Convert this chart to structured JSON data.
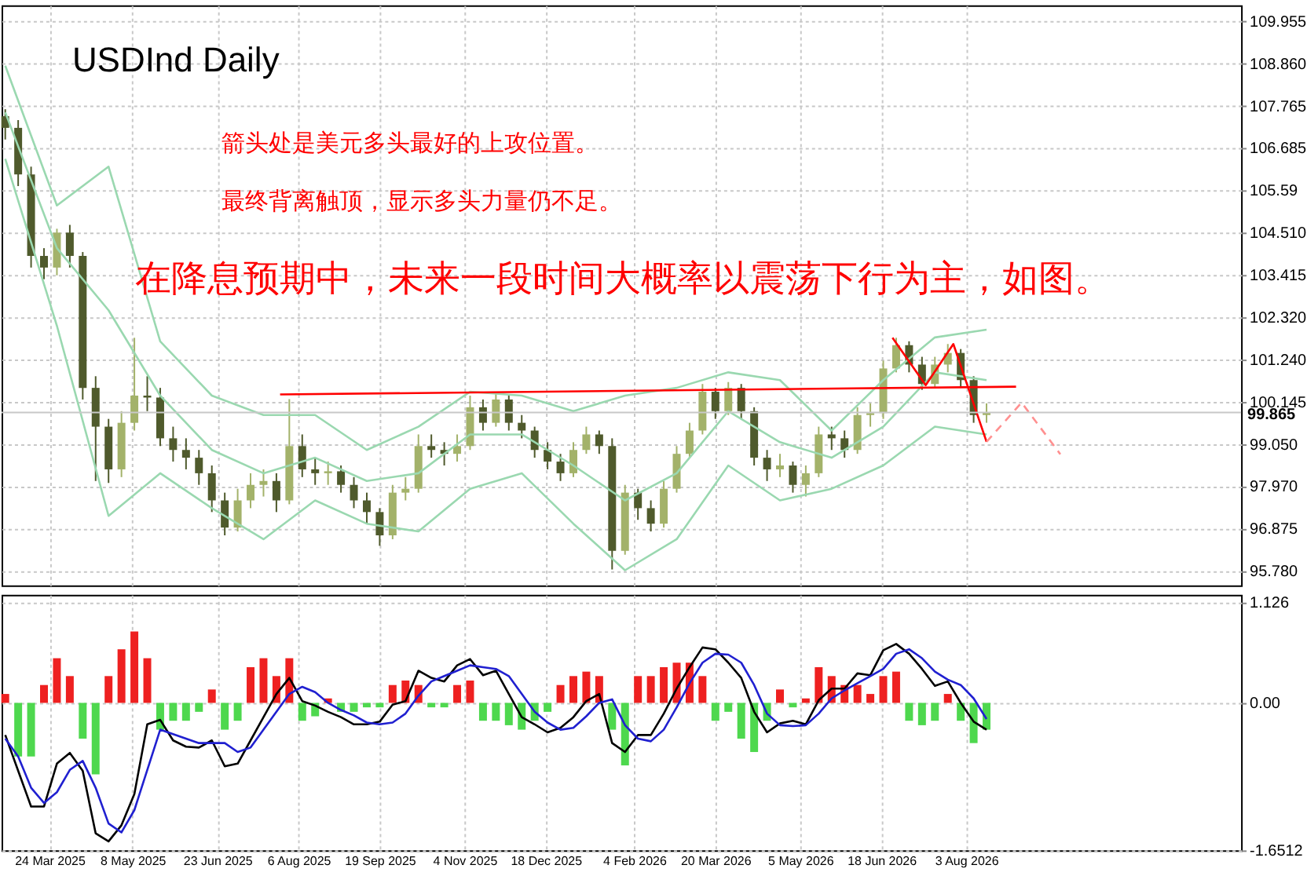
{
  "chart_data": [
    {
      "type": "candlestick",
      "title": "USDInd Daily",
      "annotations": [
        "箭头处是美元多头最好的上攻位置。",
        "最终背离触顶，显示多头力量仍不足。",
        "在降息预期中，未来一段时间大概率以震荡下行为主，如图。"
      ],
      "x": [
        "2025-02-28",
        "2025-03-07",
        "2025-03-14",
        "2025-03-21",
        "2025-03-28",
        "2025-04-04",
        "2025-04-11",
        "2025-04-18",
        "2025-04-25",
        "2025-05-02",
        "2025-05-09",
        "2025-05-16",
        "2025-05-23",
        "2025-05-30",
        "2025-06-06",
        "2025-06-13",
        "2025-06-20",
        "2025-06-27",
        "2025-07-04",
        "2025-07-11",
        "2025-07-18",
        "2025-07-25",
        "2025-08-01",
        "2025-08-08",
        "2025-08-15",
        "2025-08-22",
        "2025-08-29",
        "2025-09-05",
        "2025-09-12",
        "2025-09-19",
        "2025-09-26",
        "2025-10-03",
        "2025-10-10",
        "2025-10-17",
        "2025-10-24",
        "2025-10-31",
        "2025-11-07",
        "2025-11-14",
        "2025-11-21",
        "2025-11-28",
        "2025-12-05",
        "2025-12-12",
        "2025-12-19",
        "2025-12-26",
        "2026-01-02",
        "2026-01-09",
        "2026-01-16",
        "2026-01-23",
        "2026-01-30",
        "2026-02-06",
        "2026-02-13",
        "2026-02-20",
        "2026-02-27",
        "2026-03-06",
        "2026-03-13",
        "2026-03-20",
        "2026-03-27",
        "2026-04-03",
        "2026-04-10",
        "2026-04-17",
        "2026-04-24",
        "2026-05-01",
        "2026-05-08",
        "2026-05-15",
        "2026-05-22",
        "2026-05-29",
        "2026-06-05",
        "2026-06-12",
        "2026-06-19",
        "2026-06-26",
        "2026-07-03",
        "2026-07-10",
        "2026-07-17",
        "2026-07-24",
        "2026-07-31",
        "2026-08-07",
        "2026-08-14"
      ],
      "series": [
        {
          "colors": [
            "#4f5a2c",
            "#4f5a2c",
            "#4f5a2c",
            "#4f5a2c",
            "#a3b26a",
            "#4f5a2c",
            "#4f5a2c",
            "#4f5a2c",
            "#4f5a2c",
            "#a3b26a",
            "#a3b26a",
            "#4f5a2c",
            "#4f5a2c",
            "#4f5a2c",
            "#4f5a2c",
            "#4f5a2c",
            "#4f5a2c",
            "#4f5a2c",
            "#a3b26a",
            "#a3b26a",
            "#a3b26a",
            "#4f5a2c",
            "#a3b26a",
            "#4f5a2c",
            "#4f5a2c",
            "#a3b26a",
            "#4f5a2c",
            "#4f5a2c",
            "#4f5a2c",
            "#4f5a2c",
            "#a3b26a",
            "#a3b26a",
            "#a3b26a",
            "#4f5a2c",
            "#4f5a2c",
            "#a3b26a",
            "#a3b26a",
            "#4f5a2c",
            "#a3b26a",
            "#4f5a2c",
            "#4f5a2c",
            "#4f5a2c",
            "#4f5a2c",
            "#4f5a2c",
            "#a3b26a",
            "#a3b26a",
            "#4f5a2c",
            "#4f5a2c",
            "#a3b26a",
            "#4f5a2c",
            "#4f5a2c",
            "#a3b26a",
            "#a3b26a",
            "#a3b26a",
            "#a3b26a",
            "#4f5a2c",
            "#a3b26a",
            "#4f5a2c",
            "#4f5a2c",
            "#4f5a2c",
            "#a3b26a",
            "#4f5a2c",
            "#a3b26a",
            "#a3b26a",
            "#4f5a2c",
            "#4f5a2c",
            "#a3b26a",
            "#a3b26a",
            "#a3b26a",
            "#a3b26a",
            "#4f5a2c",
            "#4f5a2c",
            "#a3b26a",
            "#a3b26a",
            "#4f5a2c",
            "#4f5a2c",
            "#a3b26a"
          ],
          "ohlc": [
            [
              107.5,
              107.68,
              106.9,
              107.2
            ],
            [
              107.2,
              107.4,
              105.7,
              106.0
            ],
            [
              106.0,
              106.2,
              103.6,
              103.9
            ],
            [
              103.9,
              104.1,
              103.3,
              103.6
            ],
            [
              103.6,
              104.6,
              103.4,
              104.5
            ],
            [
              104.5,
              104.7,
              103.6,
              103.9
            ],
            [
              103.9,
              104.0,
              100.2,
              100.5
            ],
            [
              100.5,
              100.8,
              98.1,
              99.5
            ],
            [
              99.5,
              99.7,
              98.05,
              98.4
            ],
            [
              98.4,
              99.9,
              98.2,
              99.6
            ],
            [
              99.6,
              101.79,
              99.4,
              100.3
            ],
            [
              100.3,
              100.8,
              99.9,
              100.25
            ],
            [
              100.25,
              100.5,
              99.0,
              99.2
            ],
            [
              99.2,
              99.5,
              98.6,
              98.9
            ],
            [
              98.9,
              99.2,
              98.4,
              98.7
            ],
            [
              98.7,
              98.9,
              98.0,
              98.3
            ],
            [
              98.3,
              98.5,
              97.3,
              97.6
            ],
            [
              97.6,
              97.8,
              96.7,
              96.9
            ],
            [
              96.9,
              97.9,
              96.8,
              97.6
            ],
            [
              97.6,
              98.3,
              97.4,
              98.0
            ],
            [
              98.0,
              98.4,
              97.7,
              98.1
            ],
            [
              98.1,
              98.3,
              97.3,
              97.6
            ],
            [
              97.6,
              100.21,
              97.5,
              99.0
            ],
            [
              99.0,
              99.3,
              98.2,
              98.4
            ],
            [
              98.4,
              98.7,
              98.0,
              98.3
            ],
            [
              98.3,
              98.6,
              98.0,
              98.35
            ],
            [
              98.35,
              98.5,
              97.8,
              98.0
            ],
            [
              98.0,
              98.2,
              97.4,
              97.6
            ],
            [
              97.6,
              97.8,
              97.0,
              97.3
            ],
            [
              97.3,
              97.4,
              96.43,
              96.7
            ],
            [
              96.7,
              98.0,
              96.6,
              97.8
            ],
            [
              97.8,
              98.2,
              97.6,
              97.9
            ],
            [
              97.9,
              99.3,
              97.8,
              99.0
            ],
            [
              99.0,
              99.3,
              98.7,
              98.9
            ],
            [
              98.9,
              99.1,
              98.5,
              98.8
            ],
            [
              98.8,
              99.3,
              98.6,
              99.0
            ],
            [
              99.0,
              100.3,
              98.9,
              100.0
            ],
            [
              100.0,
              100.2,
              99.4,
              99.6
            ],
            [
              99.6,
              100.37,
              99.5,
              100.2
            ],
            [
              100.2,
              100.3,
              99.4,
              99.6
            ],
            [
              99.6,
              99.8,
              99.2,
              99.4
            ],
            [
              99.4,
              99.5,
              98.7,
              98.9
            ],
            [
              98.9,
              99.1,
              98.4,
              98.6
            ],
            [
              98.6,
              98.8,
              98.1,
              98.3
            ],
            [
              98.3,
              99.1,
              98.2,
              98.9
            ],
            [
              98.9,
              99.5,
              98.8,
              99.3
            ],
            [
              99.3,
              99.4,
              98.8,
              99.0
            ],
            [
              99.0,
              99.2,
              95.82,
              96.3
            ],
            [
              96.3,
              98.0,
              96.2,
              97.8
            ],
            [
              97.8,
              97.9,
              97.1,
              97.4
            ],
            [
              97.4,
              97.6,
              96.8,
              97.0
            ],
            [
              97.0,
              98.1,
              96.9,
              97.9
            ],
            [
              97.9,
              99.0,
              97.8,
              98.8
            ],
            [
              98.8,
              99.6,
              98.7,
              99.4
            ],
            [
              99.4,
              100.6,
              99.3,
              100.4
            ],
            [
              100.4,
              100.5,
              99.7,
              99.9
            ],
            [
              99.9,
              100.65,
              99.8,
              100.5
            ],
            [
              100.5,
              100.6,
              99.7,
              99.9
            ],
            [
              99.9,
              100.0,
              98.5,
              98.7
            ],
            [
              98.7,
              98.9,
              98.1,
              98.4
            ],
            [
              98.4,
              98.8,
              98.2,
              98.5
            ],
            [
              98.5,
              98.6,
              97.8,
              98.0
            ],
            [
              98.0,
              98.5,
              97.7,
              98.3
            ],
            [
              98.3,
              99.5,
              98.2,
              99.3
            ],
            [
              99.3,
              99.5,
              98.9,
              99.2
            ],
            [
              99.2,
              99.4,
              98.7,
              98.9
            ],
            [
              98.9,
              100.0,
              98.8,
              99.8
            ],
            [
              99.8,
              100.1,
              99.5,
              99.85
            ],
            [
              99.85,
              101.2,
              99.7,
              101.0
            ],
            [
              101.0,
              101.79,
              100.9,
              101.6
            ],
            [
              101.6,
              101.7,
              100.9,
              101.1
            ],
            [
              101.1,
              101.3,
              100.45,
              100.6
            ],
            [
              100.6,
              101.3,
              100.5,
              101.1
            ],
            [
              101.1,
              101.63,
              100.9,
              101.4
            ],
            [
              101.4,
              101.5,
              100.5,
              100.7
            ],
            [
              100.7,
              100.8,
              99.6,
              99.8
            ],
            [
              99.8,
              100.1,
              99.6,
              99.865
            ]
          ]
        },
        {
          "type": "line",
          "color": "#9ad8b0",
          "x": [
            "2025-02-28",
            "2025-03-28",
            "2025-04-25",
            "2025-05-23",
            "2025-06-20",
            "2025-07-18",
            "2025-08-15",
            "2025-09-12",
            "2025-10-10",
            "2025-11-07",
            "2025-12-05",
            "2026-01-02",
            "2026-01-30",
            "2026-02-27",
            "2026-03-27",
            "2026-04-24",
            "2026-05-22",
            "2026-06-19",
            "2026-07-17",
            "2026-08-14"
          ],
          "values": [
            108.8,
            105.2,
            106.2,
            101.7,
            100.3,
            99.8,
            99.8,
            98.9,
            99.5,
            100.4,
            100.3,
            99.9,
            100.3,
            100.5,
            100.9,
            100.7,
            99.4,
            100.7,
            101.8,
            102.0
          ]
        },
        {
          "type": "line",
          "color": "#9ad8b0",
          "x": [
            "2025-02-28",
            "2025-03-28",
            "2025-04-25",
            "2025-05-23",
            "2025-06-20",
            "2025-07-18",
            "2025-08-15",
            "2025-09-12",
            "2025-10-10",
            "2025-11-07",
            "2025-12-05",
            "2026-01-02",
            "2026-01-30",
            "2026-02-27",
            "2026-03-27",
            "2026-04-24",
            "2026-05-22",
            "2026-06-19",
            "2026-07-17",
            "2026-08-14"
          ],
          "values": [
            107.6,
            104.1,
            102.5,
            100.3,
            98.9,
            98.3,
            98.7,
            98.1,
            98.3,
            99.3,
            99.3,
            98.5,
            97.6,
            98.3,
            99.9,
            99.1,
            98.7,
            99.5,
            100.9,
            100.7
          ]
        },
        {
          "type": "line",
          "color": "#9ad8b0",
          "x": [
            "2025-02-28",
            "2025-03-28",
            "2025-04-25",
            "2025-05-23",
            "2025-06-20",
            "2025-07-18",
            "2025-08-15",
            "2025-09-12",
            "2025-10-10",
            "2025-11-07",
            "2025-12-05",
            "2026-01-02",
            "2026-01-30",
            "2026-02-27",
            "2026-03-27",
            "2026-04-24",
            "2026-05-22",
            "2026-06-19",
            "2026-07-17",
            "2026-08-14"
          ],
          "values": [
            106.4,
            102.1,
            97.2,
            98.3,
            97.4,
            96.6,
            97.6,
            97.0,
            96.8,
            97.9,
            98.3,
            97.0,
            95.8,
            96.6,
            98.5,
            97.6,
            97.9,
            98.5,
            99.5,
            99.3
          ]
        },
        {
          "type": "line",
          "color": "#ff0000",
          "line_style": "solid",
          "x": [
            "2025-07-27",
            "2026-08-30"
          ],
          "values": [
            100.33,
            100.53
          ]
        },
        {
          "type": "line",
          "color": "#ff0000",
          "line_style": "solid",
          "x": [
            "2026-06-24",
            "2026-07-12",
            "2026-07-27",
            "2026-08-14"
          ],
          "values": [
            101.79,
            100.57,
            101.63,
            99.11
          ]
        },
        {
          "type": "line",
          "color": "#ff9090",
          "line_style": "dashed",
          "x": [
            "2026-08-14",
            "2026-09-02",
            "2026-09-23"
          ],
          "values": [
            99.11,
            100.12,
            98.79
          ]
        }
      ],
      "ref_lines": [
        {
          "axis": "y",
          "value": 99.865,
          "label": "99.865",
          "color": "#c8c8c8"
        }
      ],
      "xlim": [
        "2025-02-26",
        "2026-12-30"
      ],
      "xticks": [
        {
          "value": "2025-03-24",
          "label": null
        },
        {
          "value": "2025-05-08",
          "label": null
        },
        {
          "value": "2025-06-23",
          "label": null
        },
        {
          "value": "2025-08-06",
          "label": null
        },
        {
          "value": "2025-09-19",
          "label": null
        },
        {
          "value": "2025-11-04",
          "label": null
        },
        {
          "value": "2025-12-18",
          "label": null
        },
        {
          "value": "2026-02-04",
          "label": null
        },
        {
          "value": "2026-03-20",
          "label": null
        },
        {
          "value": "2026-05-05",
          "label": null
        },
        {
          "value": "2026-06-18",
          "label": null
        },
        {
          "value": "2026-08-03",
          "label": null
        }
      ],
      "ylim": [
        95.41,
        110.36
      ],
      "yticks": [
        109.955,
        {
          "value": 108.86,
          "label": "108.860"
        },
        107.765,
        106.685,
        105.59,
        {
          "value": 104.51,
          "label": "104.510"
        },
        103.415,
        {
          "value": 102.32,
          "label": "102.320"
        },
        {
          "value": 101.24,
          "label": "101.240"
        },
        100.145,
        {
          "value": 99.05,
          "label": "99.050"
        },
        {
          "value": 97.97,
          "label": "97.970"
        },
        96.875,
        {
          "value": 95.78,
          "label": "95.780"
        }
      ],
      "tick_labels": "y",
      "grid": true
    },
    {
      "type": "bar",
      "x": [
        "2025-02-28",
        "2025-03-07",
        "2025-03-14",
        "2025-03-21",
        "2025-03-28",
        "2025-04-04",
        "2025-04-11",
        "2025-04-18",
        "2025-04-25",
        "2025-05-02",
        "2025-05-09",
        "2025-05-16",
        "2025-05-23",
        "2025-05-30",
        "2025-06-06",
        "2025-06-13",
        "2025-06-20",
        "2025-06-27",
        "2025-07-04",
        "2025-07-11",
        "2025-07-18",
        "2025-07-25",
        "2025-08-01",
        "2025-08-08",
        "2025-08-15",
        "2025-08-22",
        "2025-08-29",
        "2025-09-05",
        "2025-09-12",
        "2025-09-19",
        "2025-09-26",
        "2025-10-03",
        "2025-10-10",
        "2025-10-17",
        "2025-10-24",
        "2025-10-31",
        "2025-11-07",
        "2025-11-14",
        "2025-11-21",
        "2025-11-28",
        "2025-12-05",
        "2025-12-12",
        "2025-12-19",
        "2025-12-26",
        "2026-01-02",
        "2026-01-09",
        "2026-01-16",
        "2026-01-23",
        "2026-01-30",
        "2026-02-06",
        "2026-02-13",
        "2026-02-20",
        "2026-02-27",
        "2026-03-06",
        "2026-03-13",
        "2026-03-20",
        "2026-03-27",
        "2026-04-03",
        "2026-04-10",
        "2026-04-17",
        "2026-04-24",
        "2026-05-01",
        "2026-05-08",
        "2026-05-15",
        "2026-05-22",
        "2026-05-29",
        "2026-06-05",
        "2026-06-12",
        "2026-06-19",
        "2026-06-26",
        "2026-07-03",
        "2026-07-10",
        "2026-07-17",
        "2026-07-24",
        "2026-07-31",
        "2026-08-07",
        "2026-08-14"
      ],
      "series": [
        {
          "values": [
            0.1,
            -0.6,
            -0.6,
            0.2,
            0.5,
            0.3,
            -0.4,
            -0.8,
            0.3,
            0.6,
            0.8,
            0.5,
            -0.3,
            -0.2,
            -0.2,
            -0.1,
            0.15,
            -0.3,
            -0.2,
            0.4,
            0.5,
            0.3,
            0.5,
            -0.2,
            -0.15,
            0.05,
            -0.1,
            -0.1,
            -0.05,
            -0.05,
            0.2,
            0.25,
            0.2,
            -0.05,
            -0.05,
            0.2,
            0.25,
            -0.2,
            -0.2,
            -0.25,
            -0.3,
            -0.2,
            -0.1,
            0.2,
            0.3,
            0.35,
            0.3,
            -0.3,
            -0.7,
            0.3,
            0.3,
            0.4,
            0.45,
            0.45,
            0.3,
            -0.2,
            -0.1,
            -0.4,
            -0.55,
            -0.2,
            0.15,
            -0.05,
            0.05,
            0.4,
            0.3,
            0.2,
            0.2,
            0.1,
            0.3,
            0.35,
            -0.2,
            -0.25,
            -0.2,
            0.1,
            -0.2,
            -0.45,
            -0.3
          ],
          "colors": [
            "#ee2020",
            "#4ed84e",
            "#4ed84e",
            "#ee2020",
            "#ee2020",
            "#ee2020",
            "#4ed84e",
            "#4ed84e",
            "#ee2020",
            "#ee2020",
            "#ee2020",
            "#ee2020",
            "#4ed84e",
            "#4ed84e",
            "#4ed84e",
            "#4ed84e",
            "#ee2020",
            "#4ed84e",
            "#4ed84e",
            "#ee2020",
            "#ee2020",
            "#ee2020",
            "#ee2020",
            "#4ed84e",
            "#4ed84e",
            "#ee2020",
            "#4ed84e",
            "#4ed84e",
            "#4ed84e",
            "#4ed84e",
            "#ee2020",
            "#ee2020",
            "#ee2020",
            "#4ed84e",
            "#4ed84e",
            "#ee2020",
            "#ee2020",
            "#4ed84e",
            "#4ed84e",
            "#4ed84e",
            "#4ed84e",
            "#4ed84e",
            "#4ed84e",
            "#ee2020",
            "#ee2020",
            "#ee2020",
            "#ee2020",
            "#4ed84e",
            "#4ed84e",
            "#ee2020",
            "#ee2020",
            "#ee2020",
            "#ee2020",
            "#ee2020",
            "#ee2020",
            "#4ed84e",
            "#4ed84e",
            "#4ed84e",
            "#4ed84e",
            "#4ed84e",
            "#ee2020",
            "#4ed84e",
            "#ee2020",
            "#ee2020",
            "#ee2020",
            "#ee2020",
            "#ee2020",
            "#ee2020",
            "#ee2020",
            "#ee2020",
            "#4ed84e",
            "#4ed84e",
            "#4ed84e",
            "#ee2020",
            "#4ed84e",
            "#4ed84e",
            "#4ed84e"
          ]
        },
        {
          "type": "line",
          "color": "#000000",
          "values": [
            -0.36,
            -0.76,
            -1.16,
            -1.16,
            -0.68,
            -0.56,
            -0.76,
            -1.46,
            -1.55,
            -1.37,
            -1.02,
            -0.24,
            -0.19,
            -0.42,
            -0.49,
            -0.5,
            -0.42,
            -0.71,
            -0.68,
            -0.42,
            -0.16,
            0.1,
            0.28,
            0.02,
            -0.03,
            -0.1,
            -0.16,
            -0.24,
            -0.24,
            -0.21,
            -0.02,
            0.02,
            0.36,
            0.28,
            0.24,
            0.42,
            0.49,
            0.31,
            0.36,
            0.1,
            -0.16,
            -0.24,
            -0.33,
            -0.28,
            -0.16,
            0.02,
            0.1,
            -0.45,
            -0.55,
            -0.36,
            -0.36,
            -0.12,
            0.16,
            0.4,
            0.62,
            0.6,
            0.45,
            0.28,
            -0.1,
            -0.33,
            -0.23,
            -0.2,
            -0.24,
            0.03,
            0.16,
            0.16,
            0.33,
            0.31,
            0.59,
            0.66,
            0.55,
            0.38,
            0.19,
            0.24,
            0.0,
            -0.21,
            -0.3
          ]
        },
        {
          "type": "line",
          "color": "#2020d0",
          "values": [
            -0.4,
            -0.6,
            -0.95,
            -1.12,
            -1.0,
            -0.75,
            -0.65,
            -0.95,
            -1.35,
            -1.45,
            -1.2,
            -0.75,
            -0.3,
            -0.35,
            -0.4,
            -0.45,
            -0.45,
            -0.45,
            -0.55,
            -0.5,
            -0.3,
            -0.1,
            0.1,
            0.18,
            0.12,
            0.0,
            -0.08,
            -0.14,
            -0.22,
            -0.24,
            -0.22,
            -0.12,
            0.08,
            0.24,
            0.3,
            0.36,
            0.42,
            0.4,
            0.38,
            0.3,
            0.1,
            -0.1,
            -0.22,
            -0.3,
            -0.28,
            -0.15,
            0.0,
            0.04,
            -0.25,
            -0.4,
            -0.43,
            -0.3,
            -0.05,
            0.22,
            0.45,
            0.55,
            0.54,
            0.45,
            0.2,
            -0.12,
            -0.25,
            -0.26,
            -0.25,
            -0.12,
            0.05,
            0.14,
            0.22,
            0.3,
            0.38,
            0.55,
            0.6,
            0.5,
            0.35,
            0.26,
            0.2,
            0.05,
            -0.18
          ]
        }
      ],
      "xlim": [
        "2025-02-26",
        "2026-12-30"
      ],
      "xticks": [
        {
          "value": "2025-03-24",
          "label": "24 Mar 2025"
        },
        {
          "value": "2025-05-08",
          "label": "8 May 2025"
        },
        {
          "value": "2025-06-23",
          "label": "23 Jun 2025"
        },
        {
          "value": "2025-08-06",
          "label": "6 Aug 2025"
        },
        {
          "value": "2025-09-19",
          "label": "19 Sep 2025"
        },
        {
          "value": "2025-11-04",
          "label": "4 Nov 2025"
        },
        {
          "value": "2025-12-18",
          "label": "18 Dec 2025"
        },
        {
          "value": "2026-02-04",
          "label": "4 Feb 2026"
        },
        {
          "value": "2026-03-20",
          "label": "20 Mar 2026"
        },
        {
          "value": "2026-05-05",
          "label": "5 May 2026"
        },
        {
          "value": "2026-06-18",
          "label": "18 Jun 2026"
        },
        {
          "value": "2026-08-03",
          "label": "3 Aug 2026"
        }
      ],
      "ylim": [
        -1.6512,
        1.21
      ],
      "yticks": [
        1.126,
        {
          "value": 0,
          "label": "0.00"
        },
        -1.6512
      ],
      "grid": true
    }
  ]
}
